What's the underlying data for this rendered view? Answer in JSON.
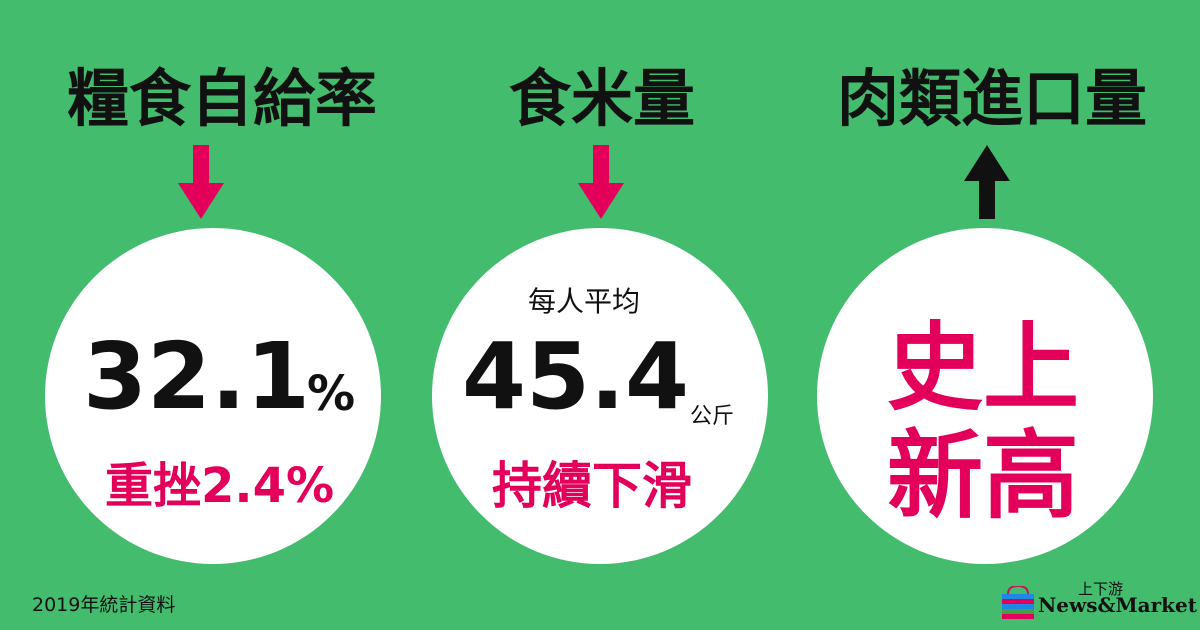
{
  "colors": {
    "background": "#43bc6e",
    "accent": "#e2005a",
    "text": "#111111"
  },
  "columns": [
    {
      "title": "糧食自給率",
      "trend": "down",
      "value": "32.1",
      "unit": "%",
      "note": "重挫2.4%"
    },
    {
      "title": "食米量",
      "trend": "down",
      "prefix": "每人平均",
      "value": "45.4",
      "unit": "公斤",
      "note": "持續下滑"
    },
    {
      "title": "肉類進口量",
      "trend": "up",
      "line1": "史上",
      "line2": "新高"
    }
  ],
  "footer": "2019年統計資料",
  "logo": {
    "top": "上下游",
    "name": "News&Market"
  }
}
